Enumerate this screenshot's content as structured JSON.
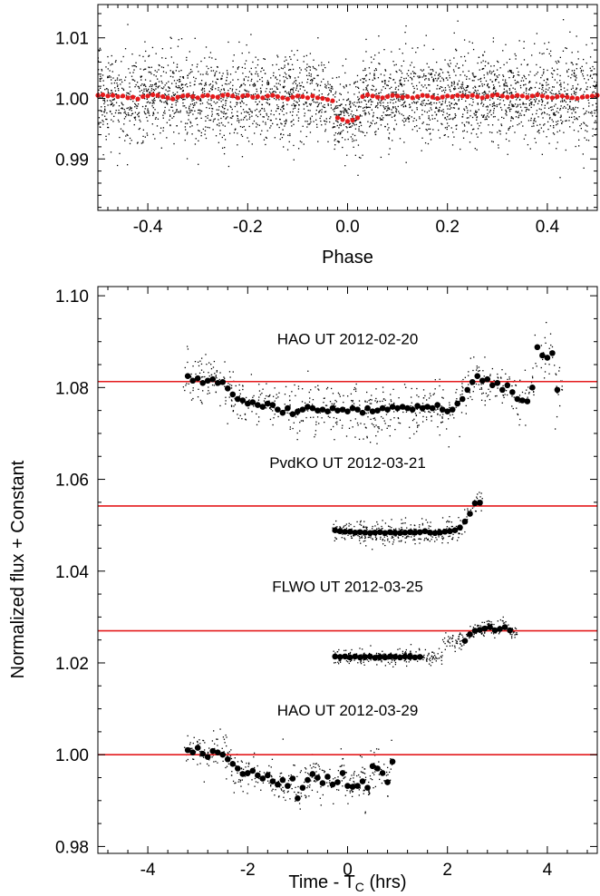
{
  "chart_data": [
    {
      "id": "top",
      "type": "scatter",
      "xlabel": "Phase",
      "ylabel": "",
      "xlim": [
        -0.5,
        0.5
      ],
      "ylim": [
        0.9815,
        1.0155
      ],
      "xticks": [
        -0.4,
        -0.2,
        0.0,
        0.2,
        0.4
      ],
      "xtick_labels": [
        "-0.4",
        "-0.2",
        "0.0",
        "0.2",
        "0.4"
      ],
      "yticks": [
        0.99,
        1.0,
        1.01
      ],
      "ytick_labels": [
        "0.99",
        "1.00",
        "1.01"
      ],
      "grid": false,
      "series": [
        {
          "role": "raw",
          "color": "#000000",
          "marker": "dot",
          "scatter_sigma": 0.0037,
          "n_points": 3200,
          "generator": "uniform phase in [-0.5, 0.5], flux = 1.0002 + transit dip near phase 0 + gaussian scatter"
        },
        {
          "role": "binned",
          "color": "#e41a1c",
          "marker": "filled-circle",
          "x": [
            -0.5,
            -0.49,
            -0.48,
            -0.47,
            -0.46,
            -0.45,
            -0.44,
            -0.43,
            -0.42,
            -0.41,
            -0.4,
            -0.39,
            -0.38,
            -0.37,
            -0.36,
            -0.35,
            -0.34,
            -0.33,
            -0.32,
            -0.31,
            -0.3,
            -0.29,
            -0.28,
            -0.27,
            -0.26,
            -0.25,
            -0.24,
            -0.23,
            -0.22,
            -0.21,
            -0.2,
            -0.19,
            -0.18,
            -0.17,
            -0.16,
            -0.15,
            -0.14,
            -0.13,
            -0.12,
            -0.11,
            -0.1,
            -0.09,
            -0.08,
            -0.07,
            -0.06,
            -0.05,
            -0.04,
            -0.03,
            -0.02,
            -0.01,
            0.0,
            0.01,
            0.02,
            0.03,
            0.04,
            0.05,
            0.06,
            0.07,
            0.08,
            0.09,
            0.1,
            0.11,
            0.12,
            0.13,
            0.14,
            0.15,
            0.16,
            0.17,
            0.18,
            0.19,
            0.2,
            0.21,
            0.22,
            0.23,
            0.24,
            0.25,
            0.26,
            0.27,
            0.28,
            0.29,
            0.3,
            0.31,
            0.32,
            0.33,
            0.34,
            0.35,
            0.36,
            0.37,
            0.38,
            0.39,
            0.4,
            0.41,
            0.42,
            0.43,
            0.44,
            0.45,
            0.46,
            0.47,
            0.48,
            0.49,
            0.5
          ],
          "y": [
            1.0005,
            1.0006,
            1.0004,
            1.0005,
            1.0003,
            1.0004,
            1.0001,
            1.0002,
            0.9999,
            1.0003,
            1.0004,
            1.0006,
            1.0005,
            1.0003,
            1.0001,
            0.9999,
            1.0002,
            1.0004,
            1.0005,
            1.0003,
            1.0001,
            1.0004,
            1.0005,
            1.0003,
            1.0002,
            1.0005,
            1.0006,
            1.0004,
            1.0001,
            1.0004,
            1.0005,
            1.0002,
            1.0003,
            1.0001,
            1.0004,
            1.0005,
            1.0003,
            1.0001,
            0.9999,
            1.0002,
            1.0004,
            1.0003,
            1.0001,
            1.0004,
            1.0001,
            1.0,
            0.9998,
            0.9996,
            0.9968,
            0.9965,
            0.9962,
            0.9964,
            0.9968,
            1.0003,
            1.0006,
            1.0004,
            1.0002,
            1.0001,
            1.0003,
            1.0005,
            1.0004,
            1.0002,
            1.0003,
            1.0001,
            1.0003,
            1.0005,
            1.0004,
            1.0002,
            1.0,
            1.0002,
            1.0004,
            1.0003,
            1.0005,
            1.0004,
            1.0003,
            1.0005,
            1.0003,
            1.0001,
            1.0003,
            1.0005,
            1.0006,
            1.0004,
            1.0002,
            1.0003,
            1.0005,
            1.0004,
            1.0002,
            1.0004,
            1.0006,
            1.0004,
            1.0002,
            1.0001,
            1.0003,
            1.0004,
            1.0002,
            1.0001,
            1.0,
            1.0002,
            1.0003,
            1.0004,
            1.0005
          ]
        }
      ]
    },
    {
      "id": "bottom",
      "type": "scatter",
      "xlabel": "Time - T",
      "xlabel_sub": "C",
      "xlabel_suffix": " (hrs)",
      "ylabel": "Normalized flux + Constant",
      "xlim": [
        -5.0,
        5.0
      ],
      "ylim": [
        0.9785,
        1.102
      ],
      "xticks": [
        -4,
        -2,
        0,
        2,
        4
      ],
      "xtick_labels": [
        "-4",
        "-2",
        "0",
        "2",
        "4"
      ],
      "yticks": [
        0.98,
        1.0,
        1.02,
        1.04,
        1.06,
        1.08,
        1.1
      ],
      "ytick_labels": [
        "0.98",
        "1.00",
        "1.02",
        "1.04",
        "1.06",
        "1.08",
        "1.10"
      ],
      "grid": false,
      "model": {
        "color": "#e41a1c",
        "ingress_start": -2.65,
        "ingress_end": -2.3,
        "egress_start": 2.3,
        "egress_end": 2.65,
        "depth": 0.0052,
        "limb_curvature": 0.001
      },
      "datasets": [
        {
          "label": "HAO UT 2012-02-20",
          "baseline": 1.0813,
          "t_start": -3.3,
          "t_end": 4.3,
          "raw_n": 700,
          "raw_sigma": 0.0027,
          "binned_t": [
            -3.2,
            -3.1,
            -3.0,
            -2.9,
            -2.8,
            -2.7,
            -2.6,
            -2.5,
            -2.4,
            -2.3,
            -2.2,
            -2.1,
            -2.0,
            -1.9,
            -1.8,
            -1.7,
            -1.6,
            -1.5,
            -1.4,
            -1.3,
            -1.2,
            -1.1,
            -1.0,
            -0.9,
            -0.8,
            -0.7,
            -0.6,
            -0.5,
            -0.4,
            -0.3,
            -0.2,
            -0.1,
            0.0,
            0.1,
            0.2,
            0.3,
            0.4,
            0.5,
            0.6,
            0.7,
            0.8,
            0.9,
            1.0,
            1.1,
            1.2,
            1.3,
            1.4,
            1.5,
            1.6,
            1.7,
            1.8,
            1.9,
            2.0,
            2.1,
            2.2,
            2.3,
            2.4,
            2.5,
            2.6,
            2.7,
            2.8,
            2.9,
            3.0,
            3.1,
            3.2,
            3.3,
            3.4,
            3.5,
            3.6,
            3.7,
            3.8,
            3.9,
            4.0,
            4.1,
            4.2
          ],
          "binned_y": [
            1.0825,
            1.0815,
            1.082,
            1.081,
            1.0815,
            1.0818,
            1.081,
            1.0812,
            1.0798,
            1.0785,
            1.0775,
            1.0772,
            1.0765,
            1.0768,
            1.0762,
            1.0758,
            1.0765,
            1.0762,
            1.0752,
            1.0745,
            1.0755,
            1.0742,
            1.0748,
            1.0752,
            1.0758,
            1.0755,
            1.075,
            1.0752,
            1.0748,
            1.0755,
            1.075,
            1.0752,
            1.0748,
            1.0755,
            1.0752,
            1.0745,
            1.0755,
            1.0748,
            1.075,
            1.0755,
            1.0752,
            1.0758,
            1.0755,
            1.0758,
            1.0755,
            1.0752,
            1.076,
            1.0755,
            1.0758,
            1.0755,
            1.0762,
            1.0752,
            1.0748,
            1.0752,
            1.0765,
            1.0775,
            1.0795,
            1.0812,
            1.0825,
            1.0815,
            1.0818,
            1.0805,
            1.081,
            1.0795,
            1.0805,
            1.079,
            1.0775,
            1.0772,
            1.077,
            1.08,
            1.0888,
            1.087,
            1.0865,
            1.0875,
            1.0795
          ]
        },
        {
          "label": "PvdKO UT 2012-03-21",
          "baseline": 1.0542,
          "t_start": -0.3,
          "t_end": 2.7,
          "raw_n": 380,
          "raw_sigma": 0.0012,
          "binned_t": [
            -0.25,
            -0.15,
            -0.05,
            0.05,
            0.15,
            0.25,
            0.35,
            0.45,
            0.55,
            0.65,
            0.75,
            0.85,
            0.95,
            1.05,
            1.15,
            1.25,
            1.35,
            1.45,
            1.55,
            1.65,
            1.75,
            1.85,
            1.95,
            2.05,
            2.15,
            2.25,
            2.35,
            2.45,
            2.55,
            2.65
          ],
          "binned_y": [
            1.0489,
            1.0487,
            1.0486,
            1.0486,
            1.0484,
            1.0485,
            1.0484,
            1.0483,
            1.0484,
            1.0485,
            1.0483,
            1.0485,
            1.0484,
            1.0483,
            1.0484,
            1.0485,
            1.0484,
            1.0485,
            1.0487,
            1.0484,
            1.0483,
            1.0484,
            1.0486,
            1.0487,
            1.0489,
            1.0495,
            1.0508,
            1.0525,
            1.0548,
            1.0549
          ]
        },
        {
          "label": "FLWO UT 2012-03-25",
          "baseline": 1.027,
          "t_start": -0.3,
          "t_end": 3.4,
          "raw_n": 430,
          "raw_sigma": 0.0009,
          "binned_t": [
            -0.25,
            -0.15,
            -0.05,
            0.05,
            0.15,
            0.25,
            0.35,
            0.45,
            0.55,
            0.65,
            0.75,
            0.85,
            0.95,
            1.05,
            1.15,
            1.25,
            1.35,
            1.45,
            2.35,
            2.45,
            2.55,
            2.65,
            2.75,
            2.85,
            2.95,
            3.05,
            3.15,
            3.25
          ],
          "binned_y": [
            1.0214,
            1.0213,
            1.0214,
            1.0212,
            1.0214,
            1.0212,
            1.0213,
            1.0214,
            1.0211,
            1.0213,
            1.0212,
            1.0214,
            1.0213,
            1.0212,
            1.0214,
            1.0213,
            1.0212,
            1.0213,
            1.0248,
            1.0262,
            1.027,
            1.0272,
            1.0275,
            1.0278,
            1.0271,
            1.0274,
            1.0278,
            1.0271
          ]
        },
        {
          "label": "HAO UT 2012-03-29",
          "baseline": 1.0,
          "t_start": -3.3,
          "t_end": 0.9,
          "raw_n": 420,
          "raw_sigma": 0.0022,
          "binned_t": [
            -3.2,
            -3.1,
            -3.0,
            -2.9,
            -2.8,
            -2.7,
            -2.6,
            -2.5,
            -2.4,
            -2.3,
            -2.2,
            -2.1,
            -2.0,
            -1.9,
            -1.8,
            -1.7,
            -1.6,
            -1.5,
            -1.4,
            -1.3,
            -1.2,
            -1.1,
            -1.0,
            -0.9,
            -0.8,
            -0.7,
            -0.6,
            -0.5,
            -0.4,
            -0.3,
            -0.2,
            -0.1,
            0.0,
            0.1,
            0.2,
            0.3,
            0.4,
            0.5,
            0.6,
            0.7,
            0.8,
            0.9
          ],
          "binned_y": [
            1.001,
            1.0005,
            1.0015,
            1.0002,
            0.9995,
            1.0008,
            1.0005,
            1.0,
            0.999,
            0.998,
            0.997,
            0.9958,
            0.996,
            0.9965,
            0.9955,
            0.9948,
            0.9955,
            0.9942,
            0.9935,
            0.9945,
            0.9932,
            0.9948,
            0.9905,
            0.9928,
            0.9945,
            0.9958,
            0.995,
            0.9938,
            0.9952,
            0.9935,
            0.994,
            0.996,
            0.9932,
            0.993,
            0.9932,
            0.9942,
            0.9928,
            0.9975,
            0.997,
            0.996,
            0.994,
            0.9985
          ]
        }
      ]
    }
  ]
}
